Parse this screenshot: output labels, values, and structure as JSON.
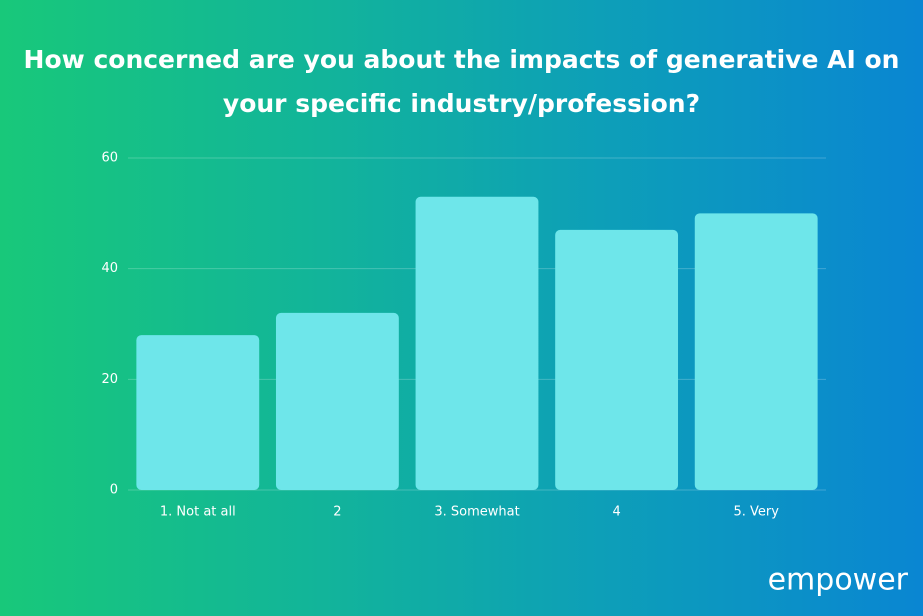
{
  "chart_data": {
    "type": "bar",
    "title": "How concerned are you about the impacts of generative AI on your specific industry/profession?",
    "categories": [
      "1. Not at all",
      "2",
      "3. Somewhat",
      "4",
      "5. Very"
    ],
    "values": [
      28,
      32,
      53,
      47,
      50
    ],
    "color": "#6ee6ea",
    "ylim": [
      0,
      60
    ],
    "yticks": [
      0,
      20,
      40,
      60
    ],
    "grid": true
  },
  "brand": "empower"
}
